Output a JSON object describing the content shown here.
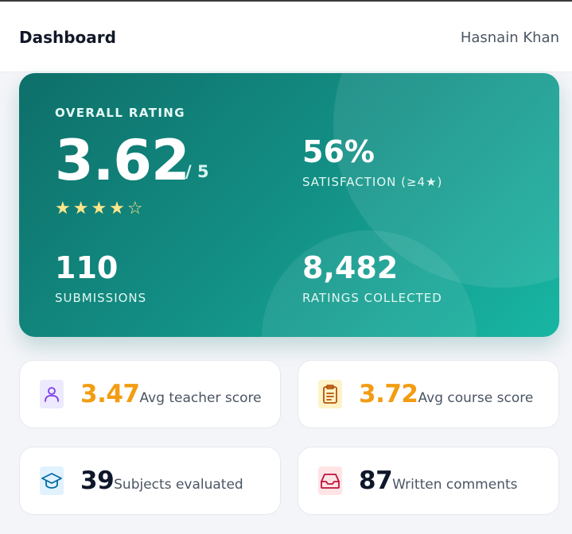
{
  "header": {
    "title": "Dashboard",
    "user_name": "Hasnain Khan"
  },
  "hero": {
    "overall_label": "OVERALL RATING",
    "rating": "3.62",
    "rating_out_of": "/ 5",
    "stars_filled": 4,
    "stars_total": 5,
    "stars_text": "★★★★☆",
    "satisfaction_value": "56%",
    "satisfaction_label": "SATISFACTION (≥4★)",
    "submissions_value": "110",
    "submissions_label": "SUBMISSIONS",
    "ratings_value": "8,482",
    "ratings_label": "RATINGS COLLECTED"
  },
  "cards": [
    {
      "icon": "user-icon",
      "value": "3.47",
      "label": "Avg teacher score",
      "icon_color": "#7c3aed",
      "icon_bg": "#ede9fe",
      "value_color": "#f39c12"
    },
    {
      "icon": "clipboard-icon",
      "value": "3.72",
      "label": "Avg course score",
      "icon_color": "#b45309",
      "icon_bg": "#fef3c7",
      "value_color": "#f39c12"
    },
    {
      "icon": "graduation-cap-icon",
      "value": "39",
      "label": "Subjects evaluated",
      "icon_color": "#0369a1",
      "icon_bg": "#e0f2fe",
      "value_color": "#0f172a"
    },
    {
      "icon": "inbox-icon",
      "value": "87",
      "label": "Written comments",
      "icon_color": "#be123c",
      "icon_bg": "#ffe4e6",
      "value_color": "#0f172a"
    }
  ]
}
